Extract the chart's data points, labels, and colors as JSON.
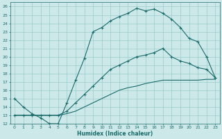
{
  "xlabel": "Humidex (Indice chaleur)",
  "bg_color": "#cce8e8",
  "grid_color": "#99cccc",
  "line_color": "#1a6b6b",
  "xlim": [
    -0.5,
    23.5
  ],
  "ylim": [
    12,
    26.5
  ],
  "xticks": [
    0,
    1,
    2,
    3,
    4,
    5,
    6,
    7,
    8,
    9,
    10,
    11,
    12,
    13,
    14,
    15,
    16,
    17,
    18,
    19,
    20,
    21,
    22,
    23
  ],
  "yticks": [
    12,
    13,
    14,
    15,
    16,
    17,
    18,
    19,
    20,
    21,
    22,
    23,
    24,
    25,
    26
  ],
  "line1_x": [
    0,
    1,
    2,
    3,
    4,
    5,
    6,
    7,
    8,
    9,
    10,
    11,
    12,
    13,
    14,
    15,
    16,
    17,
    18,
    19,
    20,
    21,
    22,
    23
  ],
  "line1_y": [
    15.0,
    14.0,
    13.2,
    12.7,
    12.0,
    12.0,
    14.5,
    17.2,
    19.8,
    23.0,
    23.5,
    24.3,
    24.8,
    25.2,
    25.8,
    25.5,
    25.7,
    25.2,
    24.5,
    23.5,
    22.2,
    21.8,
    20.0,
    17.5
  ],
  "line2_x": [
    0,
    1,
    2,
    3,
    4,
    5,
    6,
    7,
    8,
    9,
    10,
    11,
    12,
    13,
    14,
    15,
    16,
    17,
    18,
    19,
    20,
    21,
    22,
    23
  ],
  "line2_y": [
    13.0,
    13.0,
    13.0,
    13.0,
    13.0,
    13.0,
    13.5,
    14.5,
    15.5,
    16.5,
    17.5,
    18.5,
    19.0,
    19.5,
    20.0,
    20.2,
    20.5,
    21.0,
    20.0,
    19.5,
    19.2,
    18.7,
    18.5,
    17.5
  ],
  "line3_x": [
    0,
    1,
    2,
    3,
    4,
    5,
    6,
    7,
    8,
    9,
    10,
    11,
    12,
    13,
    14,
    15,
    16,
    17,
    18,
    19,
    20,
    21,
    22,
    23
  ],
  "line3_y": [
    13.0,
    13.0,
    13.0,
    13.0,
    13.0,
    13.0,
    13.2,
    13.5,
    14.0,
    14.5,
    15.0,
    15.5,
    16.0,
    16.3,
    16.5,
    16.8,
    17.0,
    17.2,
    17.2,
    17.2,
    17.2,
    17.2,
    17.3,
    17.3
  ]
}
